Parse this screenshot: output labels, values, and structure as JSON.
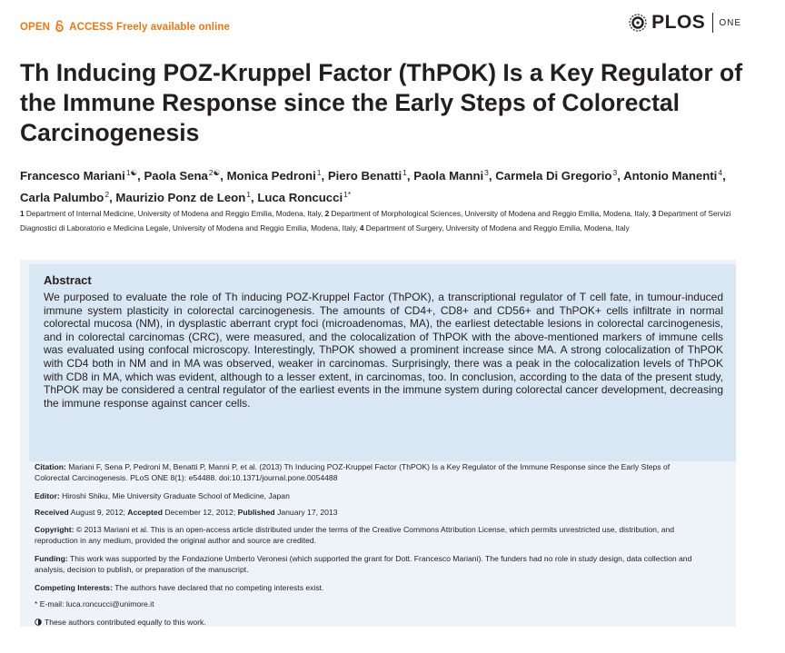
{
  "header": {
    "open_label": "OPEN",
    "access_label": "ACCESS Freely available online",
    "journal": "PLOS",
    "journal_suffix": "ONE"
  },
  "title": "Th Inducing POZ-Kruppel Factor (ThPOK) Is a Key Regulator of the Immune Response since the Early Steps of Colorectal Carcinogenesis",
  "authors": [
    {
      "name": "Francesco Mariani",
      "sup": "1☯",
      "sep": ", "
    },
    {
      "name": "Paola Sena",
      "sup": "2☯",
      "sep": ", "
    },
    {
      "name": "Monica Pedroni",
      "sup": "1",
      "sep": ", "
    },
    {
      "name": "Piero Benatti",
      "sup": "1",
      "sep": ", "
    },
    {
      "name": "Paola Manni",
      "sup": "3",
      "sep": ", "
    },
    {
      "name": "Carmela Di Gregorio",
      "sup": "3",
      "sep": ", "
    },
    {
      "name": "Antonio Manenti",
      "sup": "4",
      "sep": ", "
    },
    {
      "name": "Carla Palumbo",
      "sup": "2",
      "sep": ", "
    },
    {
      "name": "Maurizio Ponz de Leon",
      "sup": "1",
      "sep": ", "
    },
    {
      "name": "Luca Roncucci",
      "sup": "1*",
      "sep": ""
    }
  ],
  "affiliations": [
    {
      "num": "1",
      "text": "Department of Internal Medicine, University of Modena and Reggio Emilia, Modena, Italy, "
    },
    {
      "num": "2",
      "text": "Department of Morphological Sciences, University of Modena and Reggio Emilia, Modena, Italy, "
    },
    {
      "num": "3",
      "text": "Department of Servizi Diagnostici di Laboratorio e Medicina Legale, University of Modena and Reggio Emilia, Modena, Italy, "
    },
    {
      "num": "4",
      "text": "Department of Surgery, University of Modena and Reggio Emilia, Modena, Italy"
    }
  ],
  "abstract": {
    "heading": "Abstract",
    "text": "We purposed to evaluate the role of Th inducing POZ-Kruppel Factor (ThPOK), a transcriptional regulator of T cell fate, in tumour-induced immune system plasticity in colorectal carcinogenesis. The amounts of CD4+, CD8+ and CD56+ and ThPOK+ cells infiltrate in normal colorectal mucosa (NM), in dysplastic aberrant crypt foci (microadenomas, MA), the earliest detectable lesions in colorectal carcinogenesis, and in colorectal carcinomas (CRC), were measured, and the colocalization of ThPOK with the above-mentioned markers of immune cells was evaluated using confocal microscopy. Interestingly, ThPOK showed a prominent increase since MA. A strong colocalization of ThPOK with CD4 both in NM and in MA was observed, weaker in carcinomas. Surprisingly, there was a peak in the colocalization levels of ThPOK with CD8 in MA, which was evident, although to a lesser extent, in carcinomas, too. In conclusion, according to the data of the present study, ThPOK may be considered a central regulator of the earliest events in the immune system during colorectal cancer development, decreasing the immune response against cancer cells."
  },
  "meta": {
    "citation_label": "Citation:",
    "citation": "Mariani F, Sena P, Pedroni M, Benatti P, Manni P, et al. (2013) Th Inducing POZ-Kruppel Factor (ThPOK) Is a Key Regulator of the Immune Response since the Early Steps of Colorectal Carcinogenesis. PLoS ONE 8(1): e54488. doi:10.1371/journal.pone.0054488",
    "editor_label": "Editor:",
    "editor": "Hiroshi Shiku, Mie University Graduate School of Medicine, Japan",
    "received_label": "Received",
    "received": "August 9, 2012;",
    "accepted_label": "Accepted",
    "accepted": "December 12, 2012;",
    "published_label": "Published",
    "published": "January 17, 2013",
    "copyright_label": "Copyright:",
    "copyright": "© 2013 Mariani et al. This is an open-access article distributed under the terms of the Creative Commons Attribution License, which permits unrestricted use, distribution, and reproduction in any medium, provided the original author and source are credited.",
    "funding_label": "Funding:",
    "funding": "This work was supported by the Fondazione Umberto Veronesi (which supported the grant for Dott. Francesco Mariani). The funders had no role in study design, data collection and analysis, decision to publish, or preparation of the manuscript.",
    "competing_label": "Competing Interests:",
    "competing": "The authors have declared that no competing interests exist.",
    "email": "* E-mail: luca.roncucci@unimore.it",
    "equal": "These authors contributed equally to this work."
  }
}
